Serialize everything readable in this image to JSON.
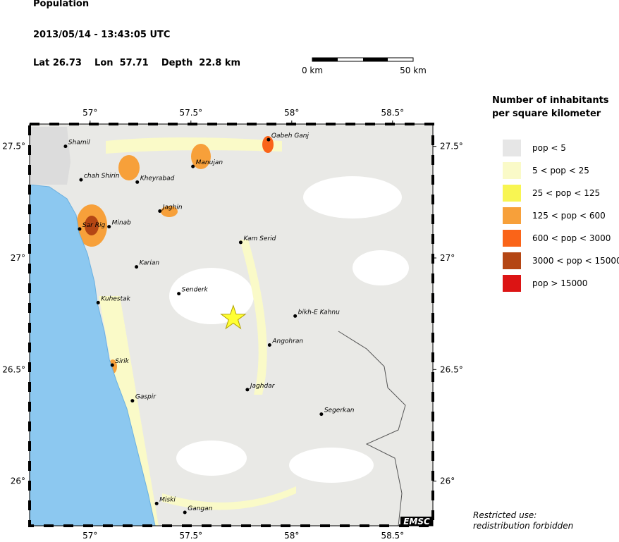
{
  "header": {
    "title": "Population",
    "datetime": "2013/05/14 - 13:43:05 UTC",
    "lat_label": "Lat",
    "lon_label": "Lon",
    "depth_label": "Depth",
    "depth_unit": "km"
  },
  "epicenter": {
    "lat": 26.73,
    "lon": 57.71,
    "depth": 22.8
  },
  "scale_bar": {
    "start_label": "0 km",
    "end_label": "50 km"
  },
  "map": {
    "xlim": [
      56.7,
      58.7
    ],
    "ylim": [
      25.8,
      27.6
    ],
    "xticks": [
      {
        "value": 57,
        "label": "57°"
      },
      {
        "value": 57.5,
        "label": "57.5°"
      },
      {
        "value": 58,
        "label": "58°"
      },
      {
        "value": 58.5,
        "label": "58.5°"
      }
    ],
    "yticks": [
      {
        "value": 27.5,
        "label": "27.5°"
      },
      {
        "value": 27,
        "label": "27°"
      },
      {
        "value": 26.5,
        "label": "26.5°"
      },
      {
        "value": 26,
        "label": "26°"
      }
    ]
  },
  "cities": [
    {
      "name": "Shamil",
      "lon": 56.878,
      "lat": 27.5
    },
    {
      "name": "chah Shirin",
      "lon": 56.955,
      "lat": 27.35
    },
    {
      "name": "Kheyrabad",
      "lon": 57.234,
      "lat": 27.34
    },
    {
      "name": "Manujan",
      "lon": 57.51,
      "lat": 27.41
    },
    {
      "name": "Qabeh Ganj",
      "lon": 57.885,
      "lat": 27.53
    },
    {
      "name": "Jaghin",
      "lon": 57.346,
      "lat": 27.21
    },
    {
      "name": "Sar Rig",
      "lon": 56.948,
      "lat": 27.13
    },
    {
      "name": "Minab",
      "lon": 57.094,
      "lat": 27.14
    },
    {
      "name": "Karian",
      "lon": 57.23,
      "lat": 26.96
    },
    {
      "name": "Kam Serid",
      "lon": 57.747,
      "lat": 27.07
    },
    {
      "name": "Senderk",
      "lon": 57.44,
      "lat": 26.84
    },
    {
      "name": "Kuhestak",
      "lon": 57.04,
      "lat": 26.8
    },
    {
      "name": "bikh-E Kahnu",
      "lon": 58.017,
      "lat": 26.74
    },
    {
      "name": "Angohran",
      "lon": 57.89,
      "lat": 26.61
    },
    {
      "name": "Sirik",
      "lon": 57.11,
      "lat": 26.52
    },
    {
      "name": "Jaghdar",
      "lon": 57.78,
      "lat": 26.41
    },
    {
      "name": "Gaspir",
      "lon": 57.21,
      "lat": 26.36
    },
    {
      "name": "Segerkan",
      "lon": 58.147,
      "lat": 26.3
    },
    {
      "name": "Miski",
      "lon": 57.33,
      "lat": 25.9
    },
    {
      "name": "Gangan",
      "lon": 57.47,
      "lat": 25.86
    }
  ],
  "legend": {
    "title_lines": [
      "Number of inhabitants",
      "per square kilometer"
    ],
    "items": [
      {
        "label": "pop < 5",
        "color": "#e6e6e6"
      },
      {
        "label": "5 < pop < 25",
        "color": "#fafac8"
      },
      {
        "label": "25 < pop < 125",
        "color": "#f8f552"
      },
      {
        "label": "125 < pop < 600",
        "color": "#f7a03a"
      },
      {
        "label": "600 < pop < 3000",
        "color": "#fa6418"
      },
      {
        "label": "3000 < pop < 15000",
        "color": "#b44614"
      },
      {
        "label": "pop > 15000",
        "color": "#dc1414"
      }
    ]
  },
  "footer": {
    "lines": [
      "Restricted use:",
      "redistribution forbidden"
    ],
    "logo": "EMSC"
  }
}
